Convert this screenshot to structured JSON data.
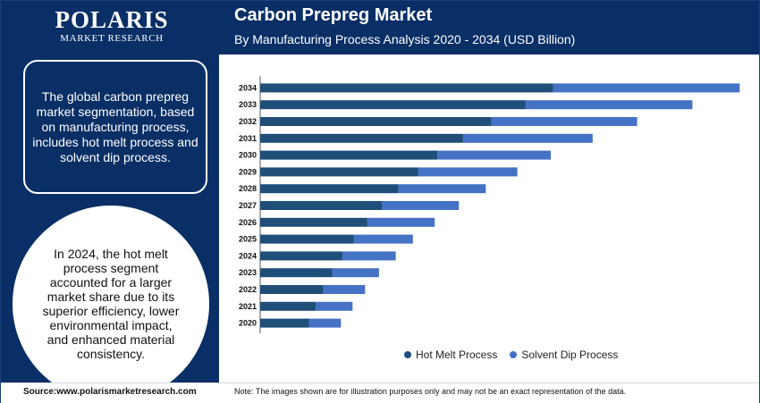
{
  "brand": {
    "name": "POLARIS",
    "tagline": "MARKET RESEARCH"
  },
  "header": {
    "title": "Carbon Prepreg Market",
    "subtitle": "By Manufacturing Process Analysis 2020 - 2034 (USD Billion)"
  },
  "left": {
    "box_text": "The global carbon prepreg market segmentation, based on manufacturing process, includes hot melt process and solvent dip process.",
    "circle_text": "In 2024, the hot melt process segment accounted for a larger market share due to its superior efficiency, lower environmental impact, and enhanced material consistency."
  },
  "footer": {
    "source": "Source:www.polarismarketresearch.com",
    "note": "Note: The images shown are for illustration purposes only and may not be an exact representation of the data."
  },
  "colors": {
    "navy": "#0a2f66",
    "hot_melt": "#1f4e79",
    "solvent_dip": "#4472c4"
  },
  "chart_data": {
    "type": "bar",
    "orientation": "horizontal",
    "stacked": true,
    "categories": [
      "2034",
      "2033",
      "2032",
      "2031",
      "2030",
      "2029",
      "2028",
      "2027",
      "2026",
      "2025",
      "2024",
      "2023",
      "2022",
      "2021",
      "2020"
    ],
    "series": [
      {
        "name": "Hot Melt Process",
        "color": "#1f4e79",
        "values": [
          6.31,
          5.71,
          4.98,
          4.37,
          3.82,
          3.4,
          2.98,
          2.62,
          2.31,
          2.02,
          1.77,
          1.55,
          1.36,
          1.2,
          1.05
        ]
      },
      {
        "name": "Solvent Dip Process",
        "color": "#4472c4",
        "values": [
          4.02,
          3.6,
          3.14,
          2.79,
          2.44,
          2.14,
          1.88,
          1.66,
          1.45,
          1.27,
          1.15,
          1.01,
          0.9,
          0.79,
          0.69
        ]
      }
    ],
    "xlim": [
      0,
      10.4
    ],
    "grid": false,
    "legend_position": "bottom"
  }
}
